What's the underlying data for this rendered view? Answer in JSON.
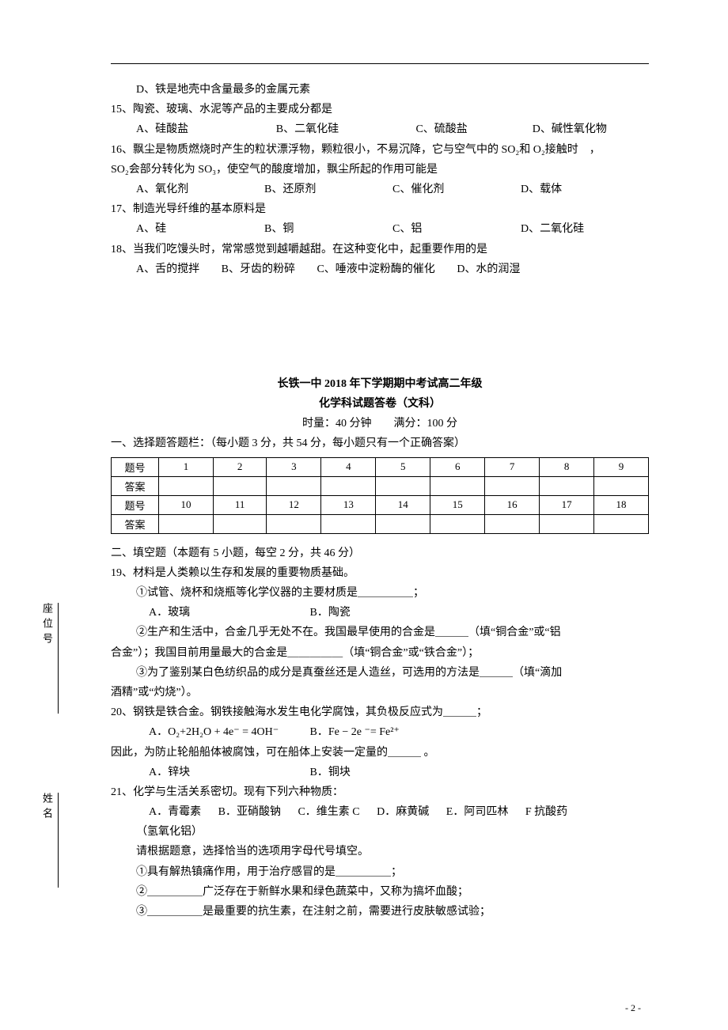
{
  "q14d": "D、铁是地壳中含量最多的金属元素",
  "q15": {
    "stem": "15、陶瓷、玻璃、水泥等产品的主要成分都是",
    "a": "A、硅酸盐",
    "b": "B、二氧化硅",
    "c": "C、硫酸盐",
    "d": "D、碱性氧化物"
  },
  "q16": {
    "line1": "16、飘尘是物质燃烧时产生的粒状漂浮物，颗粒很小，不易沉降，它与空气中的 SO₂和 O₂接触时　，",
    "line2": "SO₂会部分转化为 SO₃，使空气的酸度增加，飘尘所起的作用可能是",
    "a": "A、氧化剂",
    "b": "B、还原剂",
    "c": "C、催化剂",
    "d": "D、载体"
  },
  "q17": {
    "stem": "17、制造光导纤维的基本原料是",
    "a": "A、硅",
    "b": "B、铜",
    "c": "C、铝",
    "d": "D、二氧化硅"
  },
  "q18": {
    "stem": "18、当我们吃馒头时，常常感觉到越嚼越甜。在这种变化中，起重要作用的是",
    "a": "A、舌的搅拌",
    "b": "B、牙齿的粉碎",
    "c": "C、唾液中淀粉酶的催化",
    "d": "D、水的润湿"
  },
  "header": {
    "title1": "长铁一中 2018 年下学期期中考试高二年级",
    "title2": "化学科试题答卷（文科）",
    "timing": "时量：40 分钟　　满分：100 分"
  },
  "section1": "一、选择题答题栏：（每小题 3 分，共 54 分，每小题只有一个正确答案）",
  "tbl": {
    "rowlabel": "题号",
    "anslabel": "答案",
    "r1": [
      "1",
      "2",
      "3",
      "4",
      "5",
      "6",
      "7",
      "8",
      "9"
    ],
    "r2": [
      "10",
      "11",
      "12",
      "13",
      "14",
      "15",
      "16",
      "17",
      "18"
    ]
  },
  "section2": "二、填空题（本题有 5 小题，每空 2 分，共 46 分）",
  "q19": {
    "stem": "19、材料是人类赖以生存和发展的重要物质基础。",
    "sub1": "①试管、烧杯和烧瓶等化学仪器的主要材质是＿＿＿＿＿；",
    "a": "A．玻璃",
    "b": "B．陶瓷",
    "sub2a": "②生产和生活中，合金几乎无处不在。我国最早使用的合金是＿＿＿（填“铜合金”或“铝",
    "sub2b": "合金”）；我国目前用量最大的合金是＿＿＿＿＿（填“铜合金”或“铁合金”）；",
    "sub3a": "③为了鉴别某白色纺织品的成分是真蚕丝还是人造丝，可选用的方法是＿＿＿（填“滴加",
    "sub3b": "酒精”或“灼烧”）。"
  },
  "q20": {
    "stem": "20、钢铁是铁合金。钢铁接触海水发生电化学腐蚀，其负极反应式为＿＿＿；",
    "a": "A．O₂+2H₂O + 4e⁻ = 4OH⁻",
    "b": "B．Fe − 2e ⁻= Fe²⁺",
    "line2": "因此，为防止轮船船体被腐蚀，可在船体上安装一定量的＿＿＿ 。",
    "oa": "A．锌块",
    "ob": "B．铜块"
  },
  "q21": {
    "stem": "21、化学与生活关系密切。现有下列六种物质：",
    "optsA": "A．青霉素",
    "optsB": "B．亚硝酸钠",
    "optsC": "C．维生素 C",
    "optsD": "D．麻黄碱",
    "optsE": "E．阿司匹林",
    "optsF": "F 抗酸药",
    "optsNote": "（氢氧化铝）",
    "instr": "请根据题意，选择恰当的选项用字母代号填空。",
    "s1": "①具有解热镇痛作用，用于治疗感冒的是＿＿＿＿＿；",
    "s2": "②＿＿＿＿＿广泛存在于新鲜水果和绿色蔬菜中，又称为搞坏血酸；",
    "s3": "③＿＿＿＿＿是最重要的抗生素，在注射之前，需要进行皮肤敏感试验；"
  },
  "sidebar": {
    "seat": "座位号",
    "name": "姓名"
  },
  "pagenum": "- 2 -"
}
